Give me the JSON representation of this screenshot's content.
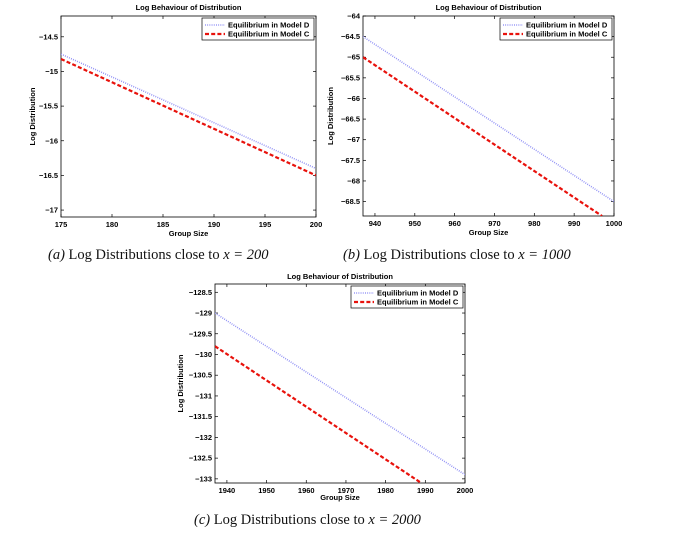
{
  "chart_data": [
    {
      "type": "line",
      "title": "Log Behaviour of Distribution",
      "xlabel": "Group Size",
      "ylabel": "Log Distribution",
      "xlim": [
        175,
        200
      ],
      "ylim": [
        -17.1,
        -14.2
      ],
      "xticks": [
        175,
        180,
        185,
        190,
        195,
        200
      ],
      "yticks": [
        -17,
        -16.5,
        -16,
        -15.5,
        -15,
        -14.5
      ],
      "legend_position": "top-right",
      "caption": {
        "tag": "(a)",
        "text": "Log Distributions close to ",
        "math": "x = 200"
      },
      "series": [
        {
          "name": "Equilibrium in Model D",
          "x": [
            175,
            200
          ],
          "y": [
            -14.75,
            -16.4
          ],
          "color": "#8f8ff5",
          "style": "dotted"
        },
        {
          "name": "Equilibrium in Model C",
          "x": [
            175,
            200
          ],
          "y": [
            -14.82,
            -16.5
          ],
          "color": "#e8120c",
          "style": "dashed"
        }
      ]
    },
    {
      "type": "line",
      "title": "Log Behaviour of Distribution",
      "xlabel": "Group Size",
      "ylabel": "Log Distribution",
      "xlim": [
        937,
        1000
      ],
      "ylim": [
        -68.85,
        -64.0
      ],
      "xticks": [
        940,
        950,
        960,
        970,
        980,
        990,
        1000
      ],
      "yticks": [
        -68.5,
        -68,
        -67.5,
        -67,
        -66.5,
        -66,
        -65.5,
        -65,
        -64.5,
        -64
      ],
      "legend_position": "top-right",
      "caption": {
        "tag": "(b)",
        "text": "Log Distributions close to ",
        "math": "x = 1000"
      },
      "series": [
        {
          "name": "Equilibrium in Model D",
          "x": [
            937,
            1000
          ],
          "y": [
            -64.5,
            -68.5
          ],
          "color": "#8f8ff5",
          "style": "dotted"
        },
        {
          "name": "Equilibrium in Model C",
          "x": [
            937,
            997
          ],
          "y": [
            -65.0,
            -68.85
          ],
          "color": "#e8120c",
          "style": "dashed"
        }
      ]
    },
    {
      "type": "line",
      "title": "Log Behaviour of Distribution",
      "xlabel": "Group Size",
      "ylabel": "Log Distribution",
      "xlim": [
        1937,
        2000
      ],
      "ylim": [
        -133.1,
        -128.3
      ],
      "xticks": [
        1940,
        1950,
        1960,
        1970,
        1980,
        1990,
        2000
      ],
      "yticks": [
        -133,
        -132.5,
        -132,
        -131.5,
        -131,
        -130.5,
        -130,
        -129.5,
        -129,
        -128.5
      ],
      "legend_position": "top-right",
      "caption": {
        "tag": "(c)",
        "text": "Log Distributions close to ",
        "math": "x = 2000"
      },
      "series": [
        {
          "name": "Equilibrium in Model D",
          "x": [
            1937,
            2000
          ],
          "y": [
            -129.0,
            -132.9
          ],
          "color": "#8f8ff5",
          "style": "dotted"
        },
        {
          "name": "Equilibrium in Model C",
          "x": [
            1937,
            1989
          ],
          "y": [
            -129.8,
            -133.1
          ],
          "color": "#e8120c",
          "style": "dashed"
        }
      ]
    }
  ]
}
